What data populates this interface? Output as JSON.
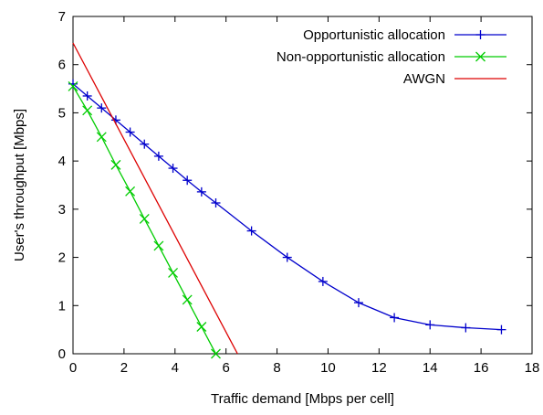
{
  "chart_data": {
    "type": "line",
    "xlabel": "Traffic demand [Mbps per cell]",
    "ylabel": "User's throughput [Mbps]",
    "xlim": [
      0,
      18
    ],
    "ylim": [
      0,
      7
    ],
    "x_ticks": [
      "0",
      "2",
      "4",
      "6",
      "8",
      "10",
      "12",
      "14",
      "16",
      "18"
    ],
    "y_ticks": [
      "0",
      "1",
      "2",
      "3",
      "4",
      "5",
      "6",
      "7"
    ],
    "grid": false,
    "legend_position": "top-right",
    "series": [
      {
        "name": "Opportunistic allocation",
        "color": "#0000cc",
        "marker": "plus",
        "x": [
          0,
          0.56,
          1.12,
          1.68,
          2.24,
          2.8,
          3.36,
          3.92,
          4.48,
          5.04,
          5.6,
          7.0,
          8.4,
          9.8,
          11.2,
          12.6,
          14.0,
          15.4,
          16.8
        ],
        "y": [
          5.6,
          5.35,
          5.1,
          4.85,
          4.6,
          4.35,
          4.1,
          3.85,
          3.6,
          3.36,
          3.13,
          2.55,
          2.0,
          1.5,
          1.06,
          0.75,
          0.6,
          0.54,
          0.5
        ]
      },
      {
        "name": "Non-opportunistic allocation",
        "color": "#00cc00",
        "marker": "cross",
        "x": [
          0,
          0.56,
          1.12,
          1.68,
          2.24,
          2.8,
          3.36,
          3.92,
          4.48,
          5.04,
          5.6
        ],
        "y": [
          5.55,
          5.05,
          4.5,
          3.92,
          3.37,
          2.8,
          2.24,
          1.68,
          1.12,
          0.56,
          0
        ]
      },
      {
        "name": "AWGN",
        "color": "#dd0000",
        "marker": "none",
        "x": [
          0,
          6.45
        ],
        "y": [
          6.45,
          0
        ]
      }
    ]
  }
}
